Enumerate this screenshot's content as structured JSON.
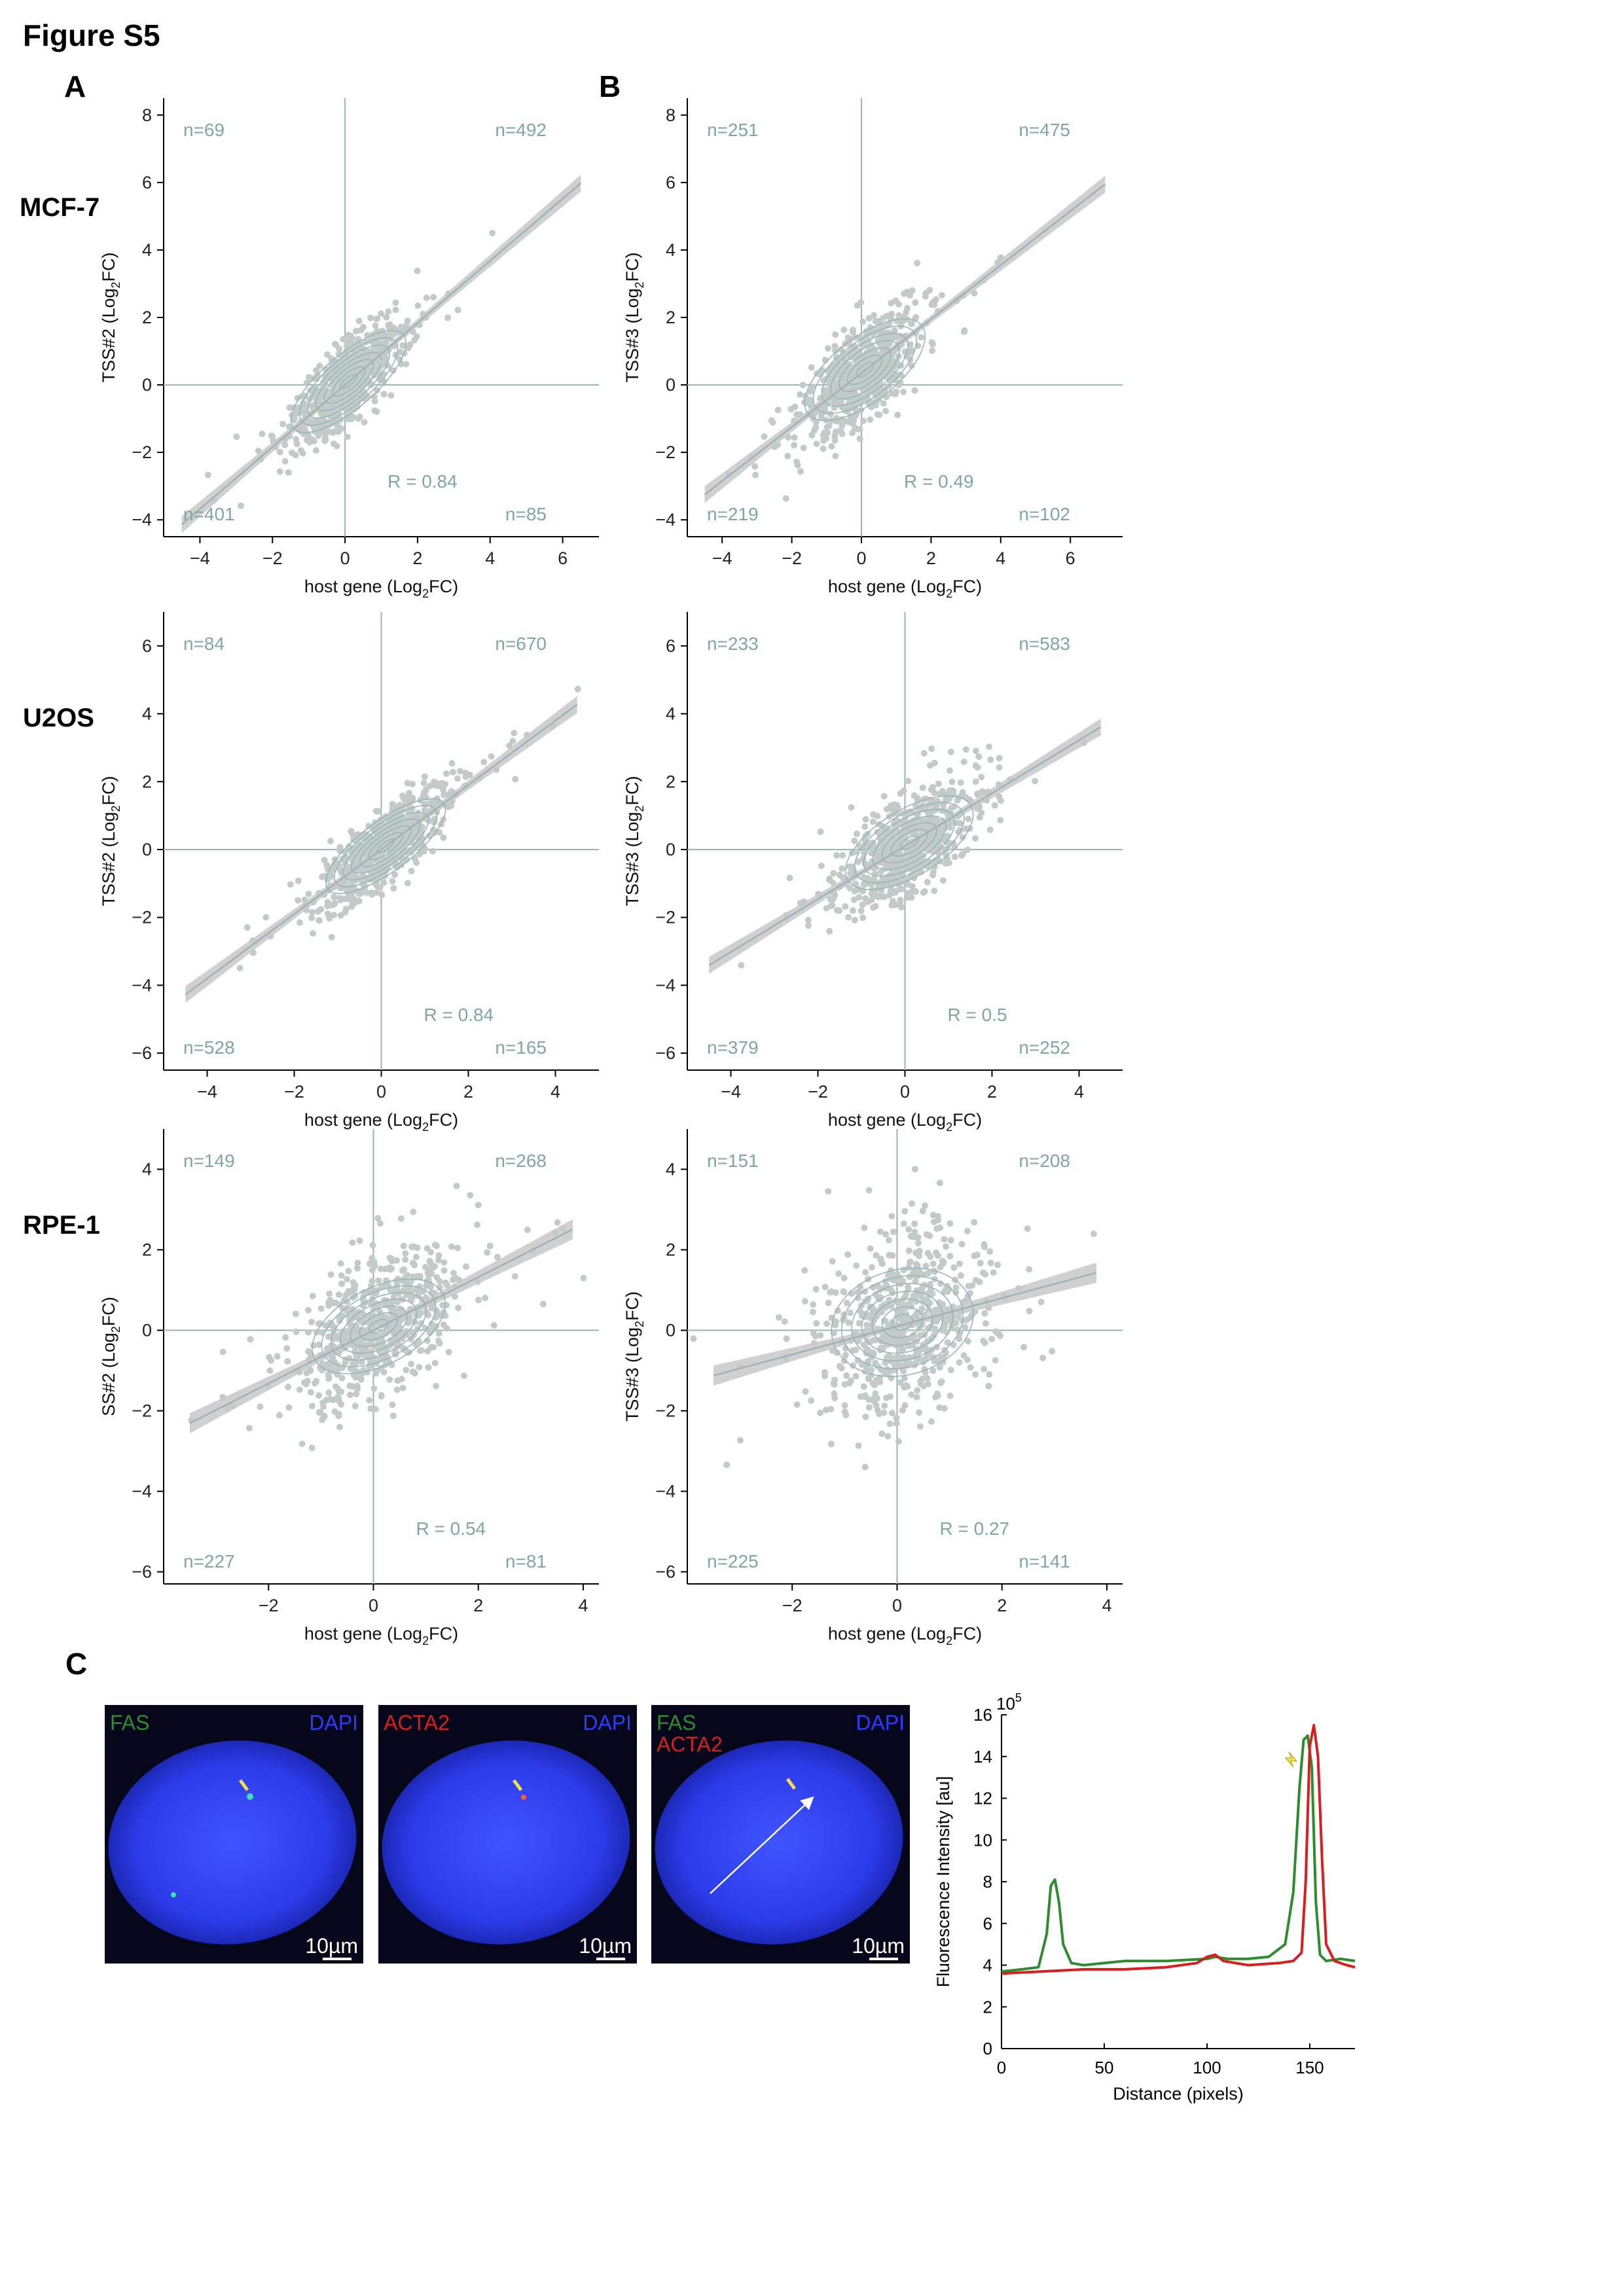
{
  "figure_title": "Figure S5",
  "panel_labels": {
    "a": "A",
    "b": "B",
    "c": "C"
  },
  "row_labels": [
    "MCF-7",
    "U2OS",
    "RPE-1"
  ],
  "colors": {
    "point": "#c2cbc8",
    "line": "#9ab5b3",
    "text": "#7fa6a3",
    "band": "#c8c8c8",
    "dapi_blue": "#2b3cff",
    "fas_green": "#2e8b2e",
    "acta2_red": "#d81e1e",
    "arrow_yellow": "#f6e04a"
  },
  "scatter_panels": [
    {
      "id": "mcf7-a",
      "xlabel_main": "host gene (Log",
      "xlabel_sub": "2",
      "xlabel_end": "FC)",
      "ylabel_main": "TSS#2 (Log",
      "ylabel_sub": "2",
      "ylabel_end": "FC)",
      "xlim": [
        -5,
        7
      ],
      "ylim": [
        -4.5,
        8.5
      ],
      "xticks": [
        -4,
        -2,
        0,
        2,
        4,
        6
      ],
      "yticks": [
        -4,
        -2,
        0,
        2,
        4,
        6,
        8
      ],
      "n_tl": "n=69",
      "n_tr": "n=492",
      "n_bl": "n=401",
      "n_br": "n=85",
      "r_label": "R = 0.84",
      "fit": {
        "slope": 0.92,
        "intercept": 0.0
      }
    },
    {
      "id": "mcf7-b",
      "xlabel_main": "host gene (Log",
      "xlabel_sub": "2",
      "xlabel_end": "FC)",
      "ylabel_main": "TSS#3 (Log",
      "ylabel_sub": "2",
      "ylabel_end": "FC)",
      "xlim": [
        -5,
        7.5
      ],
      "ylim": [
        -4.5,
        8.5
      ],
      "xticks": [
        -4,
        -2,
        0,
        2,
        4,
        6
      ],
      "yticks": [
        -4,
        -2,
        0,
        2,
        4,
        6,
        8
      ],
      "n_tl": "n=251",
      "n_tr": "n=475",
      "n_bl": "n=219",
      "n_br": "n=102",
      "r_label": "R = 0.49",
      "fit": {
        "slope": 0.8,
        "intercept": 0.35
      }
    },
    {
      "id": "u2os-a",
      "xlabel_main": "host gene (Log",
      "xlabel_sub": "2",
      "xlabel_end": "FC)",
      "ylabel_main": "TSS#2 (Log",
      "ylabel_sub": "2",
      "ylabel_end": "FC)",
      "xlim": [
        -5,
        5
      ],
      "ylim": [
        -6.5,
        7
      ],
      "xticks": [
        -4,
        -2,
        0,
        2,
        4
      ],
      "yticks": [
        -6,
        -4,
        -2,
        0,
        2,
        4,
        6
      ],
      "n_tl": "n=84",
      "n_tr": "n=670",
      "n_bl": "n=528",
      "n_br": "n=165",
      "r_label": "R = 0.84",
      "fit": {
        "slope": 0.95,
        "intercept": 0.0
      }
    },
    {
      "id": "u2os-b",
      "xlabel_main": "host gene (Log",
      "xlabel_sub": "2",
      "xlabel_end": "FC)",
      "ylabel_main": "TSS#3 (Log",
      "ylabel_sub": "2",
      "ylabel_end": "FC)",
      "xlim": [
        -5,
        5
      ],
      "ylim": [
        -6.5,
        7
      ],
      "xticks": [
        -4,
        -2,
        0,
        2,
        4
      ],
      "yticks": [
        -6,
        -4,
        -2,
        0,
        2,
        4,
        6
      ],
      "n_tl": "n=233",
      "n_tr": "n=583",
      "n_bl": "n=379",
      "n_br": "n=252",
      "r_label": "R = 0.5",
      "fit": {
        "slope": 0.78,
        "intercept": 0.1
      }
    },
    {
      "id": "rpe1-a",
      "xlabel_main": "host gene (Log",
      "xlabel_sub": "2",
      "xlabel_end": "FC)",
      "ylabel_main": "SS#2 (Log",
      "ylabel_sub": "2",
      "ylabel_end": "FC)",
      "xlim": [
        -4,
        4.3
      ],
      "ylim": [
        -6.3,
        5
      ],
      "xticks": [
        -2,
        0,
        2,
        4
      ],
      "yticks": [
        -6,
        -4,
        -2,
        0,
        2,
        4
      ],
      "n_tl": "n=149",
      "n_tr": "n=268",
      "n_bl": "n=227",
      "n_br": "n=81",
      "r_label": "R = 0.54",
      "fit": {
        "slope": 0.66,
        "intercept": 0.0
      }
    },
    {
      "id": "rpe1-b",
      "xlabel_main": "host gene (Log",
      "xlabel_sub": "2",
      "xlabel_end": "FC)",
      "ylabel_main": "TSS#3 (Log",
      "ylabel_sub": "2",
      "ylabel_end": "FC)",
      "xlim": [
        -4,
        4.3
      ],
      "ylim": [
        -6.3,
        5
      ],
      "xticks": [
        -2,
        0,
        2,
        4
      ],
      "yticks": [
        -6,
        -4,
        -2,
        0,
        2,
        4
      ],
      "n_tl": "n=151",
      "n_tr": "n=208",
      "n_bl": "n=225",
      "n_br": "n=141",
      "r_label": "R = 0.27",
      "fit": {
        "slope": 0.35,
        "intercept": 0.1
      }
    }
  ],
  "micrographs": [
    {
      "label1": "FAS",
      "label2": "",
      "label3": "DAPI",
      "scale_bar": "10µm"
    },
    {
      "label1": "ACTA2",
      "label2": "",
      "label3": "DAPI",
      "scale_bar": "10µm"
    },
    {
      "label1": "FAS",
      "label2": "ACTA2",
      "label3": "DAPI",
      "scale_bar": "10µm"
    }
  ],
  "chart_data": {
    "type": "line",
    "title": "",
    "xlabel": "Distance (pixels)",
    "ylabel": "Fluorescence Intensity [au]",
    "y_multiplier": "10",
    "y_multiplier_exp": "5",
    "xlim": [
      0,
      172
    ],
    "ylim": [
      0,
      16
    ],
    "xticks": [
      0,
      50,
      100,
      150
    ],
    "yticks": [
      0,
      2,
      4,
      6,
      8,
      10,
      12,
      14,
      16
    ],
    "series": [
      {
        "name": "FAS",
        "x": [
          0,
          10,
          18,
          22,
          24,
          26,
          28,
          30,
          34,
          40,
          50,
          60,
          80,
          100,
          104,
          110,
          120,
          130,
          138,
          142,
          145,
          147,
          149,
          151,
          153,
          155,
          158,
          165,
          172
        ],
        "y": [
          3.7,
          3.8,
          3.9,
          5.5,
          7.8,
          8.1,
          7.0,
          5.0,
          4.1,
          4.0,
          4.1,
          4.2,
          4.2,
          4.3,
          4.4,
          4.3,
          4.3,
          4.4,
          5.0,
          7.5,
          12.5,
          14.8,
          15.0,
          13.5,
          7.0,
          4.5,
          4.2,
          4.3,
          4.2
        ]
      },
      {
        "name": "ACTA2",
        "x": [
          0,
          20,
          40,
          60,
          80,
          95,
          100,
          104,
          108,
          120,
          135,
          142,
          146,
          148,
          150,
          152,
          154,
          156,
          158,
          162,
          168,
          172
        ],
        "y": [
          3.6,
          3.7,
          3.8,
          3.8,
          3.9,
          4.1,
          4.4,
          4.5,
          4.2,
          4.0,
          4.1,
          4.2,
          4.6,
          8.0,
          14.5,
          15.5,
          14.0,
          9.0,
          5.0,
          4.2,
          4.0,
          3.9
        ]
      }
    ]
  }
}
